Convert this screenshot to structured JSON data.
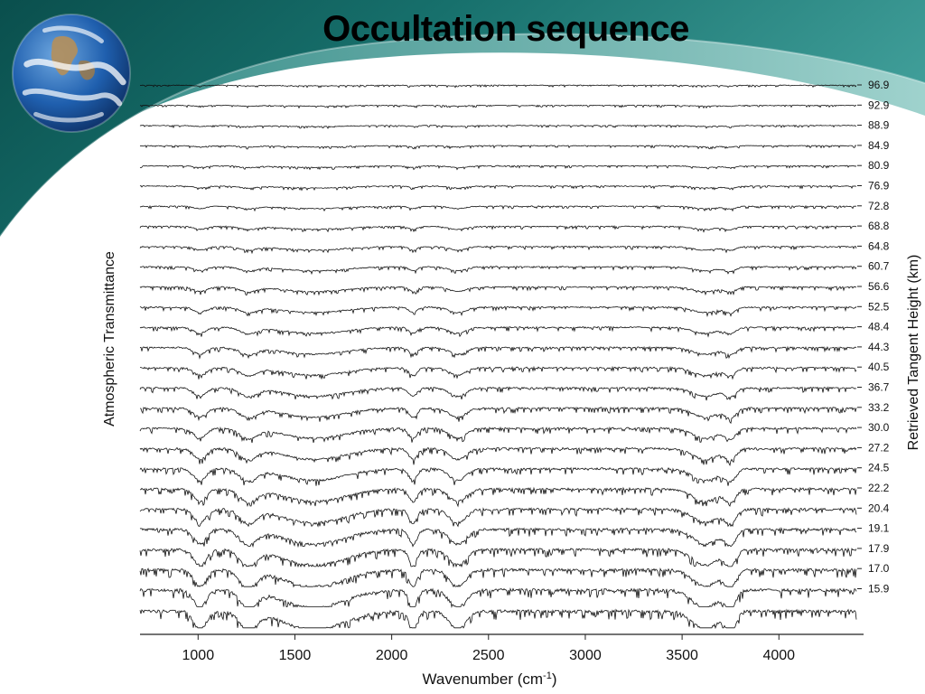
{
  "slide": {
    "title": "Occultation sequence",
    "colors": {
      "teal_dark": "#0b5e5c",
      "teal_mid": "#2f8a86",
      "teal_light": "#7fc1bd"
    },
    "logo_icon": "earth-globe-icon"
  },
  "chart_data": {
    "type": "line",
    "title": "",
    "xlabel": "Wavenumber (cm-1)",
    "xlabel_parts": {
      "main": "Wavenumber (cm",
      "sup": "-1",
      "close": ")"
    },
    "ylabel_left": "Atmospheric Transmittance",
    "ylabel_right": "Retrieved Tangent Height (km)",
    "xlim": [
      700,
      4400
    ],
    "xticks": [
      1000,
      1500,
      2000,
      2500,
      3000,
      3500,
      4000
    ],
    "xtick_labels": [
      "1000",
      "1500",
      "2000",
      "2500",
      "3000",
      "3500",
      "4000"
    ],
    "grid": false,
    "stacked_offset_spectra": true,
    "series_note_values_are_tangent_heights_km": true,
    "tangent_heights": [
      "96.9",
      "92.9",
      "88.9",
      "84.9",
      "80.9",
      "76.9",
      "72.8",
      "68.8",
      "64.8",
      "60.7",
      "56.6",
      "52.5",
      "48.4",
      "44.3",
      "40.5",
      "36.7",
      "33.2",
      "30.0",
      "27.2",
      "24.5",
      "22.2",
      "20.4",
      "19.1",
      "17.9",
      "17.0",
      "15.9"
    ],
    "absorption_bands": [
      {
        "center": 1010,
        "width": 45
      },
      {
        "center": 1260,
        "width": 60
      },
      {
        "center": 1600,
        "width": 220
      },
      {
        "center": 2110,
        "width": 30
      },
      {
        "center": 2340,
        "width": 60
      },
      {
        "center": 3620,
        "width": 90
      },
      {
        "center": 3750,
        "width": 40
      }
    ]
  }
}
